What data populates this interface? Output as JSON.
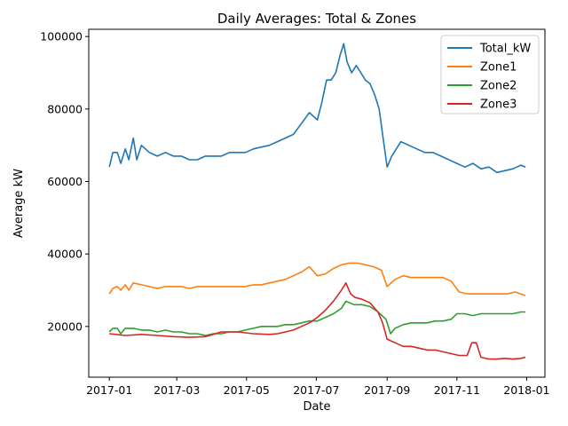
{
  "chart_data": {
    "type": "line",
    "title": "Daily Averages: Total & Zones",
    "xlabel": "Date",
    "ylabel": "Average kW",
    "x_ticks": [
      "2017-01",
      "2017-03",
      "2017-05",
      "2017-07",
      "2017-09",
      "2017-11",
      "2018-01"
    ],
    "x_range": [
      "2016-12-14",
      "2018-01-17"
    ],
    "y_ticks": [
      20000,
      40000,
      60000,
      80000,
      100000
    ],
    "y_tick_labels": [
      "20000",
      "40000",
      "60000",
      "80000",
      "100000"
    ],
    "ylim": [
      6000,
      102000
    ],
    "grid": false,
    "legend_position": "top-right",
    "series": [
      {
        "name": "Total_kW",
        "color": "#1f77b4",
        "points": [
          [
            "2017-01-01",
            64000
          ],
          [
            "2017-01-04",
            68000
          ],
          [
            "2017-01-08",
            68000
          ],
          [
            "2017-01-11",
            65000
          ],
          [
            "2017-01-15",
            69000
          ],
          [
            "2017-01-18",
            66000
          ],
          [
            "2017-01-22",
            72000
          ],
          [
            "2017-01-25",
            66000
          ],
          [
            "2017-01-29",
            70000
          ],
          [
            "2017-02-05",
            68000
          ],
          [
            "2017-02-12",
            67000
          ],
          [
            "2017-02-19",
            68000
          ],
          [
            "2017-02-26",
            67000
          ],
          [
            "2017-03-05",
            67000
          ],
          [
            "2017-03-12",
            66000
          ],
          [
            "2017-03-19",
            66000
          ],
          [
            "2017-03-26",
            67000
          ],
          [
            "2017-04-02",
            67000
          ],
          [
            "2017-04-09",
            67000
          ],
          [
            "2017-04-16",
            68000
          ],
          [
            "2017-04-23",
            68000
          ],
          [
            "2017-04-30",
            68000
          ],
          [
            "2017-05-07",
            69000
          ],
          [
            "2017-05-14",
            69500
          ],
          [
            "2017-05-21",
            70000
          ],
          [
            "2017-05-28",
            71000
          ],
          [
            "2017-06-04",
            72000
          ],
          [
            "2017-06-11",
            73000
          ],
          [
            "2017-06-18",
            76000
          ],
          [
            "2017-06-25",
            79000
          ],
          [
            "2017-07-02",
            77000
          ],
          [
            "2017-07-06",
            82000
          ],
          [
            "2017-07-10",
            88000
          ],
          [
            "2017-07-14",
            88000
          ],
          [
            "2017-07-18",
            90000
          ],
          [
            "2017-07-22",
            95000
          ],
          [
            "2017-07-25",
            98000
          ],
          [
            "2017-07-28",
            93000
          ],
          [
            "2017-08-01",
            90000
          ],
          [
            "2017-08-05",
            92000
          ],
          [
            "2017-08-09",
            90000
          ],
          [
            "2017-08-13",
            88000
          ],
          [
            "2017-08-17",
            87000
          ],
          [
            "2017-08-21",
            84000
          ],
          [
            "2017-08-25",
            80000
          ],
          [
            "2017-08-28",
            73000
          ],
          [
            "2017-09-01",
            64000
          ],
          [
            "2017-09-05",
            67000
          ],
          [
            "2017-09-09",
            69000
          ],
          [
            "2017-09-13",
            71000
          ],
          [
            "2017-09-20",
            70000
          ],
          [
            "2017-09-27",
            69000
          ],
          [
            "2017-10-04",
            68000
          ],
          [
            "2017-10-11",
            68000
          ],
          [
            "2017-10-18",
            67000
          ],
          [
            "2017-10-25",
            66000
          ],
          [
            "2017-11-01",
            65000
          ],
          [
            "2017-11-08",
            64000
          ],
          [
            "2017-11-15",
            65000
          ],
          [
            "2017-11-22",
            63500
          ],
          [
            "2017-11-29",
            64000
          ],
          [
            "2017-12-06",
            62500
          ],
          [
            "2017-12-13",
            63000
          ],
          [
            "2017-12-20",
            63500
          ],
          [
            "2017-12-27",
            64500
          ],
          [
            "2017-12-31",
            64000
          ]
        ]
      },
      {
        "name": "Zone1",
        "color": "#ff7f0e",
        "points": [
          [
            "2017-01-01",
            29000
          ],
          [
            "2017-01-04",
            30500
          ],
          [
            "2017-01-08",
            31000
          ],
          [
            "2017-01-11",
            30000
          ],
          [
            "2017-01-15",
            31500
          ],
          [
            "2017-01-18",
            30000
          ],
          [
            "2017-01-22",
            32000
          ],
          [
            "2017-01-29",
            31500
          ],
          [
            "2017-02-05",
            31000
          ],
          [
            "2017-02-12",
            30500
          ],
          [
            "2017-02-19",
            31000
          ],
          [
            "2017-02-26",
            31000
          ],
          [
            "2017-03-05",
            31000
          ],
          [
            "2017-03-12",
            30500
          ],
          [
            "2017-03-19",
            31000
          ],
          [
            "2017-03-26",
            31000
          ],
          [
            "2017-04-02",
            31000
          ],
          [
            "2017-04-09",
            31000
          ],
          [
            "2017-04-16",
            31000
          ],
          [
            "2017-04-23",
            31000
          ],
          [
            "2017-04-30",
            31000
          ],
          [
            "2017-05-07",
            31500
          ],
          [
            "2017-05-14",
            31500
          ],
          [
            "2017-05-21",
            32000
          ],
          [
            "2017-05-28",
            32500
          ],
          [
            "2017-06-04",
            33000
          ],
          [
            "2017-06-11",
            34000
          ],
          [
            "2017-06-18",
            35000
          ],
          [
            "2017-06-25",
            36500
          ],
          [
            "2017-07-02",
            34000
          ],
          [
            "2017-07-09",
            34500
          ],
          [
            "2017-07-16",
            36000
          ],
          [
            "2017-07-23",
            37000
          ],
          [
            "2017-07-30",
            37500
          ],
          [
            "2017-08-06",
            37500
          ],
          [
            "2017-08-13",
            37000
          ],
          [
            "2017-08-20",
            36500
          ],
          [
            "2017-08-27",
            35500
          ],
          [
            "2017-09-01",
            31000
          ],
          [
            "2017-09-08",
            33000
          ],
          [
            "2017-09-15",
            34000
          ],
          [
            "2017-09-22",
            33500
          ],
          [
            "2017-09-29",
            33500
          ],
          [
            "2017-10-06",
            33500
          ],
          [
            "2017-10-13",
            33500
          ],
          [
            "2017-10-20",
            33500
          ],
          [
            "2017-10-27",
            32500
          ],
          [
            "2017-11-03",
            29500
          ],
          [
            "2017-11-10",
            29000
          ],
          [
            "2017-11-17",
            29000
          ],
          [
            "2017-11-24",
            29000
          ],
          [
            "2017-12-01",
            29000
          ],
          [
            "2017-12-08",
            29000
          ],
          [
            "2017-12-15",
            29000
          ],
          [
            "2017-12-22",
            29500
          ],
          [
            "2017-12-31",
            28500
          ]
        ]
      },
      {
        "name": "Zone2",
        "color": "#2ca02c",
        "points": [
          [
            "2017-01-01",
            18500
          ],
          [
            "2017-01-04",
            19500
          ],
          [
            "2017-01-08",
            19500
          ],
          [
            "2017-01-11",
            18000
          ],
          [
            "2017-01-15",
            19500
          ],
          [
            "2017-01-22",
            19500
          ],
          [
            "2017-01-29",
            19000
          ],
          [
            "2017-02-05",
            19000
          ],
          [
            "2017-02-12",
            18500
          ],
          [
            "2017-02-19",
            19000
          ],
          [
            "2017-02-26",
            18500
          ],
          [
            "2017-03-05",
            18500
          ],
          [
            "2017-03-12",
            18000
          ],
          [
            "2017-03-19",
            18000
          ],
          [
            "2017-03-26",
            17500
          ],
          [
            "2017-04-02",
            18000
          ],
          [
            "2017-04-09",
            18000
          ],
          [
            "2017-04-16",
            18500
          ],
          [
            "2017-04-23",
            18500
          ],
          [
            "2017-04-30",
            19000
          ],
          [
            "2017-05-07",
            19500
          ],
          [
            "2017-05-14",
            20000
          ],
          [
            "2017-05-21",
            20000
          ],
          [
            "2017-05-28",
            20000
          ],
          [
            "2017-06-04",
            20500
          ],
          [
            "2017-06-11",
            20500
          ],
          [
            "2017-06-18",
            21000
          ],
          [
            "2017-06-25",
            21500
          ],
          [
            "2017-07-02",
            21500
          ],
          [
            "2017-07-09",
            22500
          ],
          [
            "2017-07-16",
            23500
          ],
          [
            "2017-07-23",
            25000
          ],
          [
            "2017-07-27",
            27000
          ],
          [
            "2017-08-03",
            26000
          ],
          [
            "2017-08-10",
            26000
          ],
          [
            "2017-08-17",
            25500
          ],
          [
            "2017-08-24",
            24000
          ],
          [
            "2017-08-31",
            22000
          ],
          [
            "2017-09-04",
            18000
          ],
          [
            "2017-09-08",
            19500
          ],
          [
            "2017-09-15",
            20500
          ],
          [
            "2017-09-22",
            21000
          ],
          [
            "2017-09-29",
            21000
          ],
          [
            "2017-10-06",
            21000
          ],
          [
            "2017-10-13",
            21500
          ],
          [
            "2017-10-20",
            21500
          ],
          [
            "2017-10-27",
            22000
          ],
          [
            "2017-11-01",
            23500
          ],
          [
            "2017-11-08",
            23500
          ],
          [
            "2017-11-15",
            23000
          ],
          [
            "2017-11-22",
            23500
          ],
          [
            "2017-11-29",
            23500
          ],
          [
            "2017-12-06",
            23500
          ],
          [
            "2017-12-13",
            23500
          ],
          [
            "2017-12-20",
            23500
          ],
          [
            "2017-12-27",
            24000
          ],
          [
            "2017-12-31",
            24000
          ]
        ]
      },
      {
        "name": "Zone3",
        "color": "#d62728",
        "points": [
          [
            "2017-01-01",
            18000
          ],
          [
            "2017-01-15",
            17500
          ],
          [
            "2017-01-29",
            17800
          ],
          [
            "2017-02-12",
            17500
          ],
          [
            "2017-02-26",
            17200
          ],
          [
            "2017-03-12",
            17000
          ],
          [
            "2017-03-26",
            17200
          ],
          [
            "2017-04-09",
            18500
          ],
          [
            "2017-04-23",
            18500
          ],
          [
            "2017-05-07",
            18000
          ],
          [
            "2017-05-21",
            17800
          ],
          [
            "2017-05-28",
            18000
          ],
          [
            "2017-06-04",
            18500
          ],
          [
            "2017-06-11",
            19000
          ],
          [
            "2017-06-18",
            20000
          ],
          [
            "2017-06-25",
            21000
          ],
          [
            "2017-07-02",
            22500
          ],
          [
            "2017-07-09",
            24500
          ],
          [
            "2017-07-16",
            27000
          ],
          [
            "2017-07-23",
            30000
          ],
          [
            "2017-07-27",
            32000
          ],
          [
            "2017-07-31",
            29000
          ],
          [
            "2017-08-04",
            28000
          ],
          [
            "2017-08-10",
            27500
          ],
          [
            "2017-08-17",
            26500
          ],
          [
            "2017-08-24",
            24000
          ],
          [
            "2017-08-28",
            21000
          ],
          [
            "2017-09-01",
            16500
          ],
          [
            "2017-09-08",
            15500
          ],
          [
            "2017-09-15",
            14500
          ],
          [
            "2017-09-22",
            14500
          ],
          [
            "2017-09-29",
            14000
          ],
          [
            "2017-10-06",
            13500
          ],
          [
            "2017-10-13",
            13500
          ],
          [
            "2017-10-20",
            13000
          ],
          [
            "2017-10-27",
            12500
          ],
          [
            "2017-11-03",
            12000
          ],
          [
            "2017-11-10",
            12000
          ],
          [
            "2017-11-14",
            15500
          ],
          [
            "2017-11-18",
            15500
          ],
          [
            "2017-11-22",
            11500
          ],
          [
            "2017-11-29",
            11000
          ],
          [
            "2017-12-06",
            11000
          ],
          [
            "2017-12-13",
            11200
          ],
          [
            "2017-12-20",
            11000
          ],
          [
            "2017-12-27",
            11200
          ],
          [
            "2017-12-31",
            11500
          ]
        ]
      }
    ]
  }
}
